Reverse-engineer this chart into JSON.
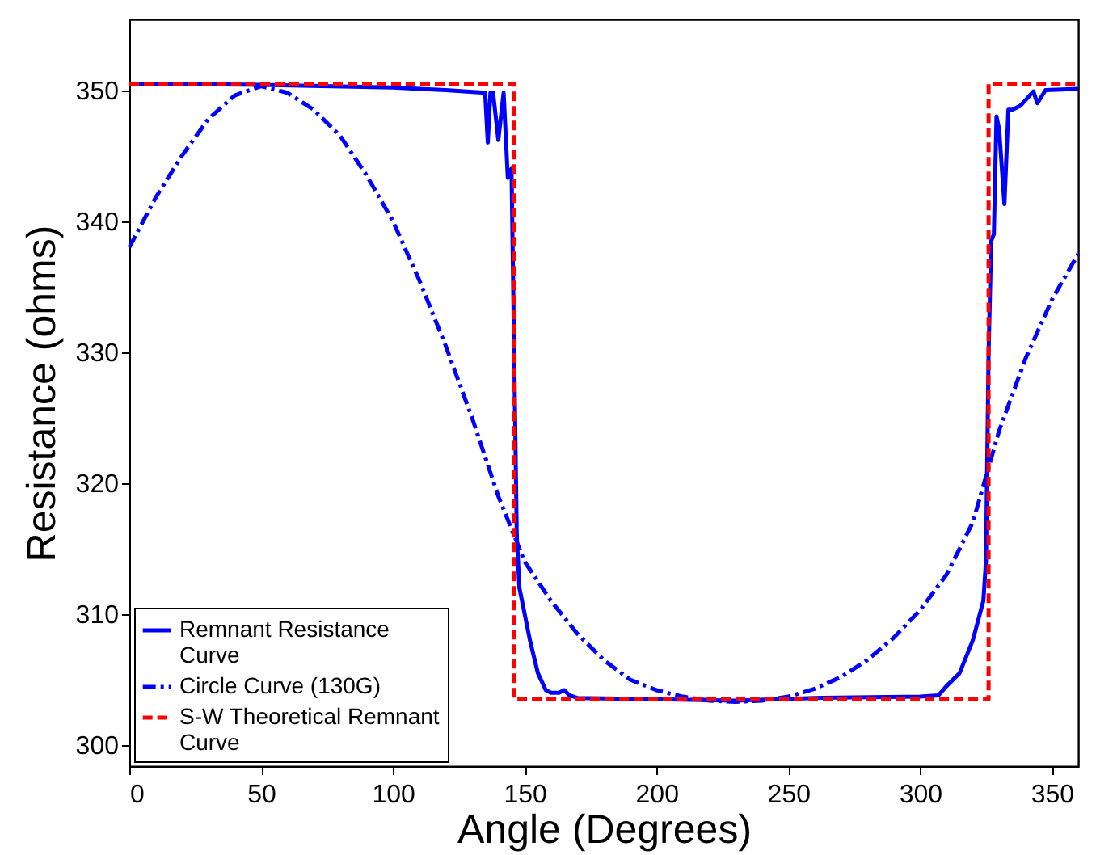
{
  "chart_data": {
    "type": "line",
    "xlabel": "Angle (Degrees)",
    "ylabel": "Resistance (ohms)",
    "xlim": [
      0,
      360
    ],
    "ylim": [
      298.4,
      355.4
    ],
    "xticks": [
      0,
      50,
      100,
      150,
      200,
      250,
      300,
      350
    ],
    "yticks": [
      300,
      310,
      320,
      330,
      340,
      350
    ],
    "grid": false,
    "legend": "bottom left",
    "series": [
      {
        "name": "Remnant Resistance Curve",
        "color": "#0000ff",
        "line_style": "solid",
        "x": [
          0,
          50,
          100,
          120,
          135,
          136,
          137,
          138,
          140,
          142,
          143.6,
          145,
          146,
          147,
          148,
          150,
          152,
          155,
          158,
          160,
          163,
          165,
          167,
          170,
          200,
          230,
          260,
          300,
          307,
          310,
          315,
          318,
          320,
          322,
          324,
          325,
          326,
          327,
          328,
          329,
          330,
          332,
          333.5,
          335,
          338,
          343,
          344.5,
          347.6,
          360
        ],
        "values": [
          350.5,
          350.4,
          350.2,
          350,
          349.8,
          346,
          349.8,
          349.8,
          346.2,
          349.8,
          343.3,
          344,
          330,
          316,
          312,
          310,
          308,
          305.5,
          304.2,
          304,
          304,
          304.2,
          303.8,
          303.6,
          303.5,
          303.4,
          303.6,
          303.7,
          303.8,
          304.5,
          305.5,
          307,
          308,
          309.5,
          311,
          314,
          330,
          338.5,
          339,
          348,
          347,
          341.3,
          348.5,
          348.5,
          348.8,
          349.9,
          349,
          350,
          350.1
        ]
      },
      {
        "name": "Circle Curve (130G)",
        "color": "#0000ff",
        "line_style": "dashdot",
        "x": [
          0,
          10,
          20,
          30,
          40,
          50,
          60,
          70,
          80,
          90,
          100,
          110,
          120,
          130,
          140,
          150,
          160,
          170,
          180,
          190,
          200,
          210,
          220,
          230,
          240,
          250,
          260,
          270,
          280,
          290,
          300,
          310,
          320,
          330,
          340,
          350,
          360
        ],
        "values": [
          338,
          341.8,
          345,
          347.8,
          349.6,
          350.3,
          349.8,
          348.5,
          346.5,
          343.5,
          340,
          335.5,
          330.5,
          325,
          319,
          314,
          311,
          308.5,
          306.5,
          305,
          304.2,
          303.7,
          303.4,
          303.3,
          303.4,
          303.7,
          304.3,
          305.2,
          306.5,
          308.2,
          310.3,
          313,
          317,
          324,
          329.5,
          334,
          337.5
        ]
      },
      {
        "name": "S-W Theoretical Remnant Curve",
        "color": "#ff0000",
        "line_style": "dashed",
        "x": [
          0,
          146,
          146,
          326,
          326,
          360
        ],
        "values": [
          350.5,
          350.5,
          303.5,
          303.5,
          350.5,
          350.5
        ]
      }
    ]
  }
}
